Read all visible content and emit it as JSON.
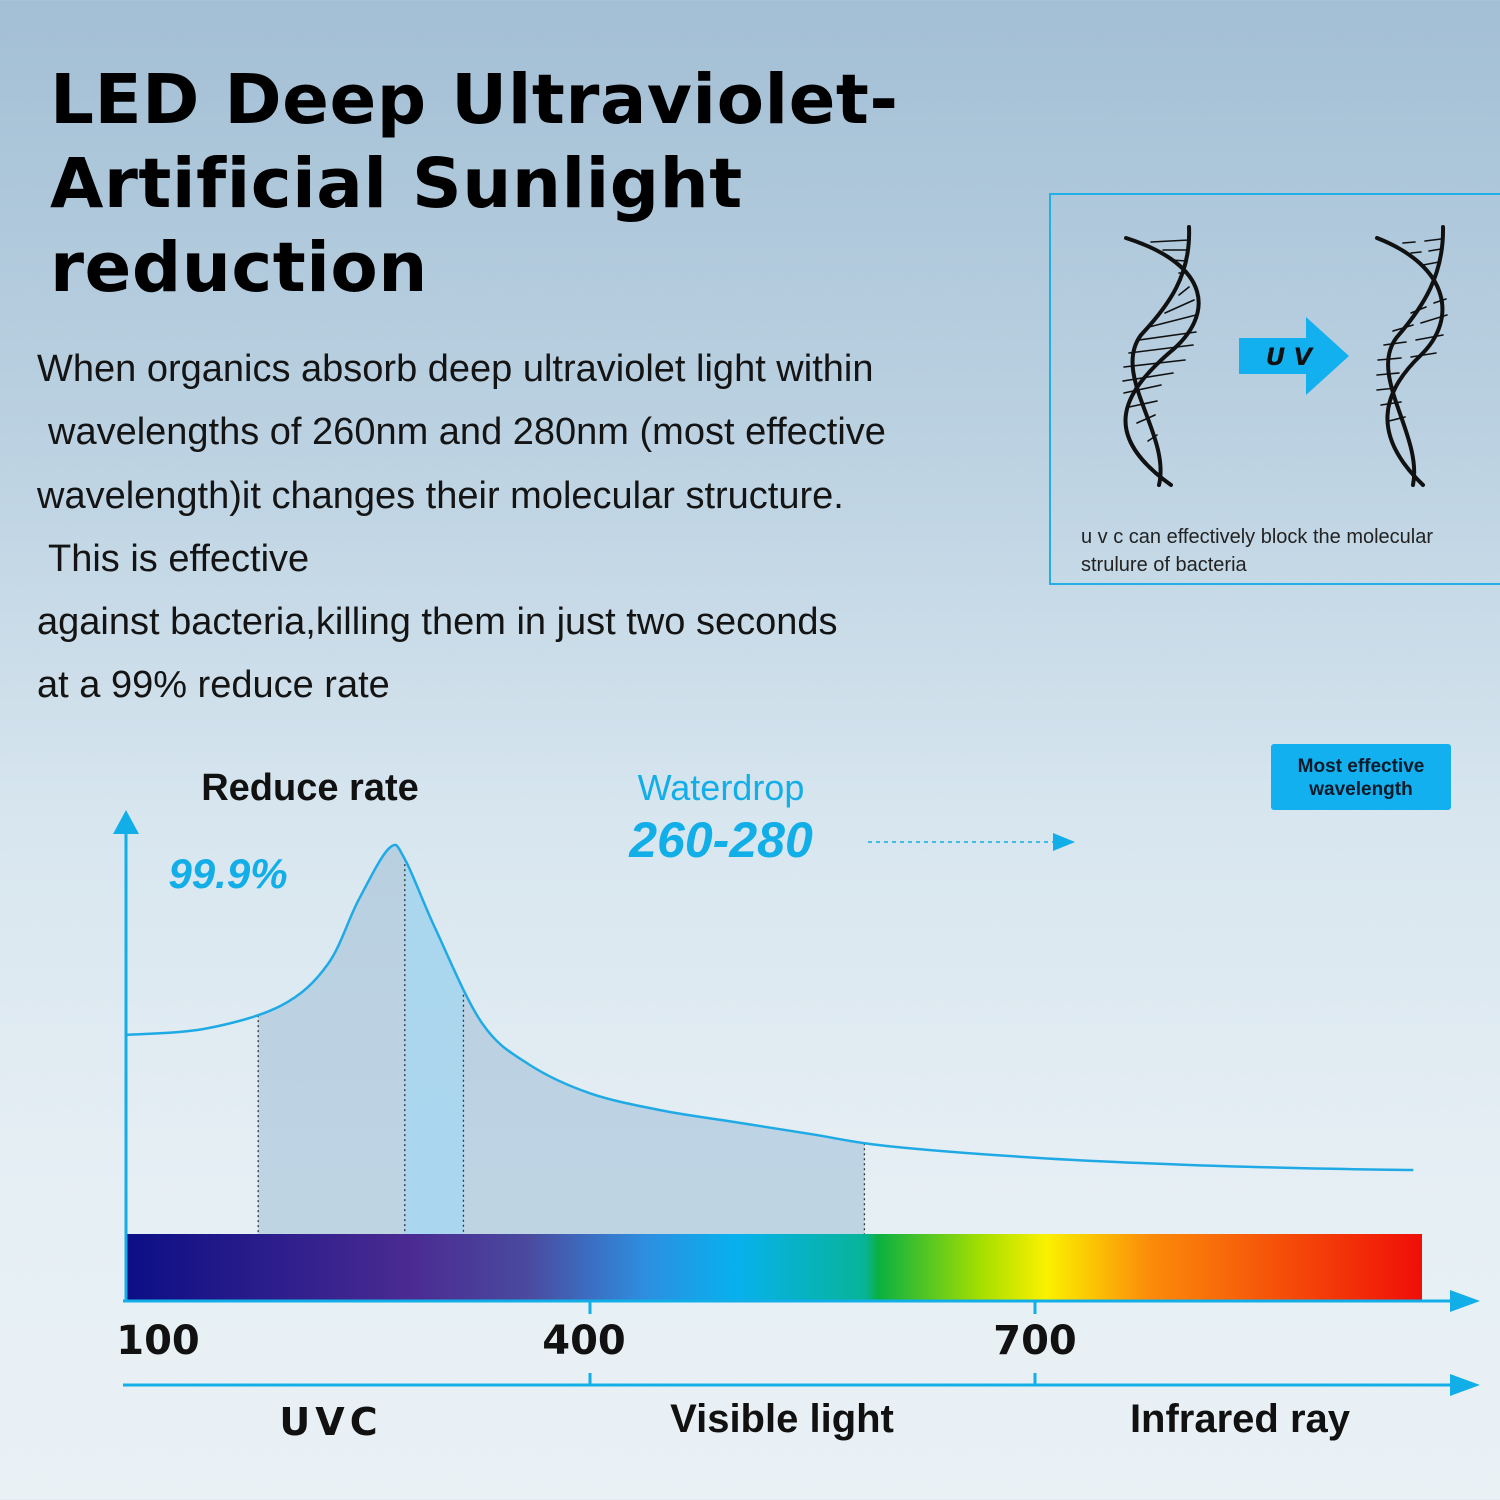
{
  "title": {
    "lines": [
      "LED Deep Ultraviolet-",
      "Artificial Sunlight",
      "reduction"
    ]
  },
  "description": {
    "lines": [
      "When organics absorb deep ultraviolet light within",
      "wavelengths of 260nm and 280nm (most effective",
      "wavelength)it changes their molecular structure.",
      "This is effective",
      "against bacteria,killing them in just two seconds",
      "at a 99% reduce rate"
    ]
  },
  "dna_panel": {
    "arrow_label": "U V",
    "caption_lines": [
      "u v c can effectively block the molecular",
      "strulure of bacteria"
    ]
  },
  "badge": {
    "lines": [
      "Most effective",
      "wavelength"
    ]
  },
  "chart_data": {
    "type": "line",
    "ylabel": "Reduce rate",
    "peak_value_label": "99.9%",
    "peak_value": 99.9,
    "highlight": {
      "name": "Waterdrop",
      "range_label": "260-280",
      "range": [
        260,
        280
      ]
    },
    "x_ticks": [
      "100",
      "400",
      "700"
    ],
    "x_tick_values": [
      100,
      400,
      700
    ],
    "x_range": [
      100,
      970
    ],
    "regions": [
      "UVC",
      "Visible light",
      "Infrared ray"
    ],
    "curve": {
      "x": [
        100,
        150,
        200,
        230,
        250,
        270,
        280,
        300,
        330,
        360,
        400,
        450,
        500,
        550,
        600,
        700,
        800,
        900,
        955
      ],
      "y": [
        68,
        69,
        73,
        80,
        91,
        99.9,
        98,
        86,
        70,
        63,
        58,
        55,
        53,
        51,
        49,
        47,
        45.8,
        45.1,
        44.9
      ]
    },
    "shaded_range": [
      185,
      585
    ],
    "dotted_markers": [
      185,
      280,
      318,
      585
    ],
    "spectrum_colors": [
      "#0c0f85",
      "#4b2b92",
      "#2e8ee0",
      "#07b1ee",
      "#0ab041",
      "#fbf100",
      "#fb8b0a",
      "#ef0e08"
    ]
  },
  "colors": {
    "accent": "#12aee8",
    "text": "#000000"
  }
}
